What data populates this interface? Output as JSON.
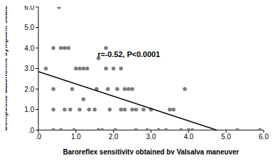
{
  "chart_data": {
    "type": "scatter",
    "x_label": "Baroreflex sensitivity obtained by Valsalva maneuver",
    "y_label": "Composite autonomic symptom scale",
    "annotations": [
      "r=-0.52, P<0.0001"
    ],
    "x": [
      0.2,
      0.4,
      0.4,
      0.4,
      0.4,
      0.55,
      0.6,
      0.6,
      0.7,
      0.7,
      0.8,
      0.85,
      0.9,
      0.95,
      1.0,
      1.1,
      1.2,
      1.3,
      1.1,
      1.2,
      1.35,
      1.5,
      1.55,
      1.6,
      1.6,
      1.7,
      1.8,
      1.8,
      1.85,
      1.9,
      2.0,
      2.05,
      2.1,
      2.2,
      2.2,
      2.3,
      2.3,
      2.4,
      2.5,
      2.5,
      2.6,
      2.6,
      2.8,
      2.9,
      3.0,
      3.2,
      3.4,
      3.5,
      3.6,
      3.8,
      3.9,
      4.0,
      4.1,
      5.3,
      5.9
    ],
    "values": [
      3,
      4,
      2,
      1,
      0,
      6,
      4,
      0,
      4,
      1,
      4,
      1,
      2,
      0,
      3,
      3,
      3,
      3,
      1,
      1.5,
      1,
      1,
      2,
      0,
      3.5,
      0,
      4,
      3,
      2,
      1,
      3,
      0,
      2,
      3,
      1,
      2,
      1,
      2,
      2,
      1,
      1,
      0,
      1,
      0,
      1,
      0,
      0,
      1,
      1,
      0,
      2,
      0,
      0,
      0,
      0
    ],
    "color": "#808080",
    "trend_line": {
      "x": [
        0,
        4.75
      ],
      "values": [
        2.85,
        0
      ],
      "color": "#000000"
    },
    "xlim": [
      0,
      6
    ],
    "ylim": [
      0,
      6
    ],
    "xticks": [
      {
        "value": 0,
        "label": ".0"
      },
      {
        "value": 1,
        "label": "1.0"
      },
      {
        "value": 2,
        "label": "2.0"
      },
      {
        "value": 3,
        "label": "3.0"
      },
      {
        "value": 4,
        "label": "4.0"
      },
      {
        "value": 5,
        "label": "5.0"
      },
      {
        "value": 6,
        "label": "6.0"
      }
    ],
    "yticks": [
      {
        "value": 0,
        "label": ".0"
      },
      {
        "value": 1,
        "label": "1.0"
      },
      {
        "value": 2,
        "label": "2.0"
      },
      {
        "value": 3,
        "label": "3.0"
      },
      {
        "value": 4,
        "label": "4.0"
      },
      {
        "value": 5,
        "label": "5.0"
      },
      {
        "value": 6,
        "label": "6.0"
      }
    ],
    "grid": false
  }
}
